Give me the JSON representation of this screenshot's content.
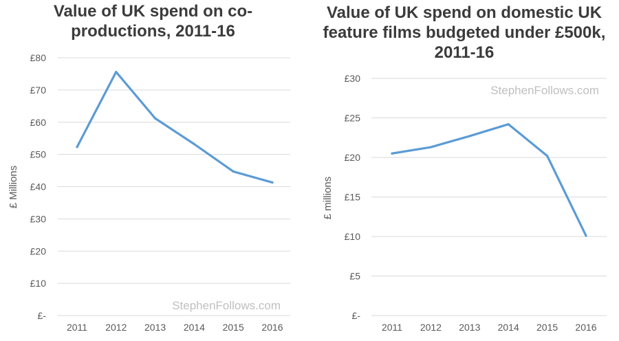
{
  "colors": {
    "series": "#5b9bd5",
    "grid": "#d9d9d9",
    "text": "#595959",
    "title": "#3b3b3b",
    "watermark": "#bfbfbf"
  },
  "chart_data": [
    {
      "type": "line",
      "title": "Value of UK spend on co-productions, 2011-16",
      "xlabel": "",
      "ylabel": "£ Millions",
      "categories": [
        "2011",
        "2012",
        "2013",
        "2014",
        "2015",
        "2016"
      ],
      "series": [
        {
          "name": "Value of UK spend on co-productions",
          "values": [
            52.3,
            75.6,
            61.2,
            53.2,
            44.7,
            41.3
          ]
        }
      ],
      "ylim": [
        0,
        80
      ],
      "yticks": [
        0,
        10,
        20,
        30,
        40,
        50,
        60,
        70,
        80
      ],
      "ytick_labels": [
        "£-",
        "£10",
        "£20",
        "£30",
        "£40",
        "£50",
        "£60",
        "£70",
        "£80"
      ],
      "grid": true,
      "watermark": "StephenFollows.com"
    },
    {
      "type": "line",
      "title": "Value of UK spend on domestic UK feature films budgeted under £500k, 2011-16",
      "xlabel": "",
      "ylabel": "£ millions",
      "categories": [
        "2011",
        "2012",
        "2013",
        "2014",
        "2015",
        "2016"
      ],
      "series": [
        {
          "name": "Value of UK spend on domestic UK feature films budgeted under £500k",
          "values": [
            20.5,
            21.3,
            22.7,
            24.2,
            20.2,
            10.1
          ]
        }
      ],
      "ylim": [
        0,
        30
      ],
      "yticks": [
        0,
        5,
        10,
        15,
        20,
        25,
        30
      ],
      "ytick_labels": [
        "£-",
        "£5",
        "£10",
        "£15",
        "£20",
        "£25",
        "£30"
      ],
      "grid": true,
      "watermark": "StephenFollows.com"
    }
  ]
}
